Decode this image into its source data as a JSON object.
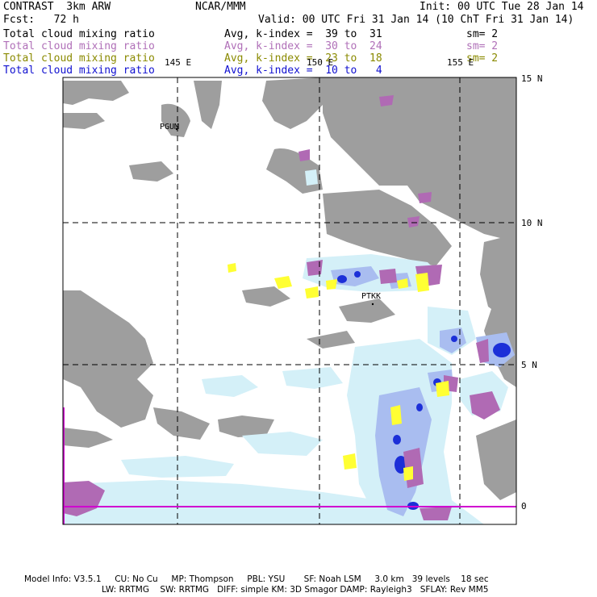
{
  "header": {
    "line1_left": "CONTRAST  3km ARW",
    "line1_center": "NCAR/MMM",
    "line1_right": "Init: 00 UTC Tue 28 Jan 14",
    "line2_left": "Fcst:   72 h",
    "line2_right": "Valid: 00 UTC Fri 31 Jan 14 (10 ChT Fri 31 Jan 14)"
  },
  "legend": [
    {
      "field": "Total cloud mixing ratio",
      "range": "Avg, k-index =  39 to  31",
      "smooth": "sm= 2",
      "color": "#000000"
    },
    {
      "field": "Total cloud mixing ratio",
      "range": "Avg, k-index =  30 to  24",
      "smooth": "sm= 2",
      "color": "#b070b8"
    },
    {
      "field": "Total cloud mixing ratio",
      "range": "Avg, k-index =  23 to  18",
      "smooth": "sm= 2",
      "color": "#8a8a00"
    },
    {
      "field": "Total cloud mixing ratio",
      "range": "Avg, k-index =  10 to   4",
      "smooth": "",
      "color": "#1010d0"
    }
  ],
  "map": {
    "lon_labels": [
      "145 E",
      "150 E",
      "155 E"
    ],
    "lat_labels": [
      "15 N",
      "10 N",
      "5 N",
      "0"
    ],
    "stations": [
      "PGUM",
      "PTKK"
    ]
  },
  "footer": {
    "line1": "Model Info: V3.5.1     CU: No Cu     MP: Thompson     PBL: YSU       SF: Noah LSM     3.0 km   39 levels    18 sec",
    "line2": "LW: RRTMG    SW: RRTMG   DIFF: simple KM: 3D Smagor DAMP: Rayleigh3   SFLAY: Rev MM5"
  },
  "colors": {
    "gray_cloud": "#9e9e9e",
    "light_cloud": "#d4f0f8",
    "mid_blue": "#a9bdf0",
    "deep_blue": "#1c2fd8",
    "magenta": "#b06ab4",
    "yellow": "#ffff33",
    "equator": "#d000d0"
  }
}
